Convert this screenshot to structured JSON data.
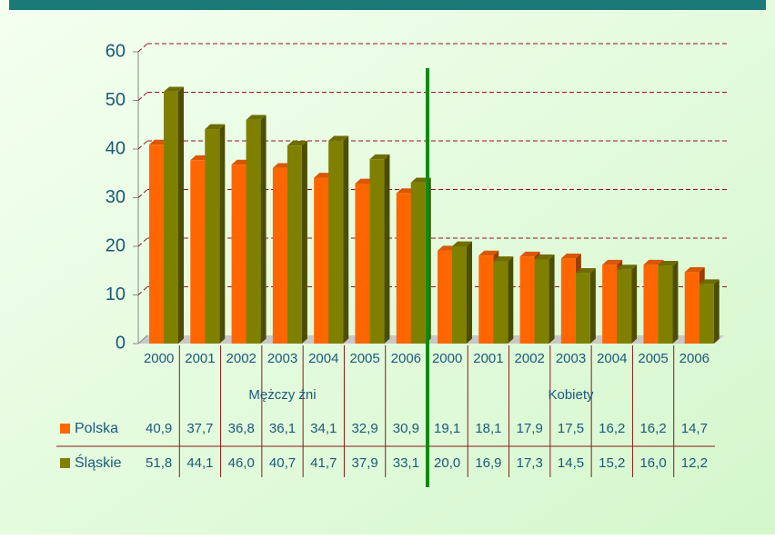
{
  "chart_data": {
    "type": "bar",
    "categories": [
      "2000",
      "2001",
      "2002",
      "2003",
      "2004",
      "2005",
      "2006",
      "2000",
      "2001",
      "2002",
      "2003",
      "2004",
      "2005",
      "2006"
    ],
    "groups": [
      "Mężczy źni",
      "Kobiety"
    ],
    "series": [
      {
        "name": "Polska",
        "color": "#ff6600",
        "values": [
          40.9,
          37.7,
          36.8,
          36.1,
          34.1,
          32.9,
          30.9,
          19.1,
          18.1,
          17.9,
          17.5,
          16.2,
          16.2,
          14.7
        ],
        "value_labels": [
          "40,9",
          "37,7",
          "36,8",
          "36,1",
          "34,1",
          "32,9",
          "30,9",
          "19,1",
          "18,1",
          "17,9",
          "17,5",
          "16,2",
          "16,2",
          "14,7"
        ]
      },
      {
        "name": "Śląskie",
        "color": "#808000",
        "values": [
          51.8,
          44.1,
          46.0,
          40.7,
          41.7,
          37.9,
          33.1,
          20.0,
          16.9,
          17.3,
          14.5,
          15.2,
          16.0,
          12.2
        ],
        "value_labels": [
          "51,8",
          "44,1",
          "46,0",
          "40,7",
          "41,7",
          "37,9",
          "33,1",
          "20,0",
          "16,9",
          "17,3",
          "14,5",
          "15,2",
          "16,0",
          "12,2"
        ]
      }
    ],
    "ylim": [
      0,
      60
    ],
    "yticks": [
      0,
      10,
      20,
      30,
      40,
      50,
      60
    ],
    "grid": true
  }
}
